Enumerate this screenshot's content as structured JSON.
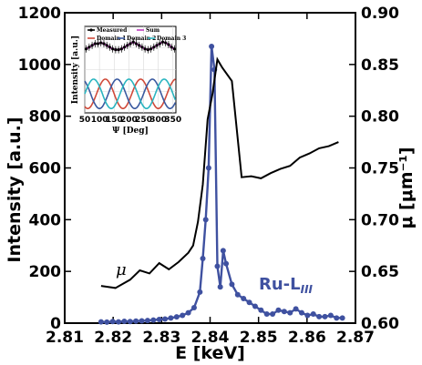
{
  "chart_data": [
    {
      "type": "line",
      "xlabel": "E [keV]",
      "ylabel_left": "Intensity [a.u.]",
      "ylabel_right": "μ [μm⁻¹]",
      "xlim": [
        2.81,
        2.87
      ],
      "ylim_left": [
        0,
        1200
      ],
      "ylim_right": [
        0.6,
        0.9
      ],
      "x_ticks": [
        "2.81",
        "2.82",
        "2.83",
        "2.84",
        "2.85",
        "2.86",
        "2.87"
      ],
      "y_ticks_left": [
        "0",
        "200",
        "400",
        "600",
        "800",
        "1000",
        "1200"
      ],
      "y_ticks_right": [
        "0.60",
        "0.65",
        "0.70",
        "0.75",
        "0.80",
        "0.85",
        "0.90"
      ],
      "annotations": {
        "mu": "μ",
        "ru_main": "Ru-L",
        "ru_sub": "III"
      },
      "series": [
        {
          "axis": "left",
          "color": "#3f51a0",
          "marker": "circle",
          "x": [
            2.8175,
            2.8187,
            2.8199,
            2.8211,
            2.8223,
            2.8235,
            2.8247,
            2.8259,
            2.8271,
            2.8283,
            2.8295,
            2.8307,
            2.8319,
            2.8331,
            2.8343,
            2.8355,
            2.8367,
            2.8379,
            2.8385,
            2.8391,
            2.8397,
            2.8403,
            2.8409,
            2.8415,
            2.8421,
            2.8427,
            2.8433,
            2.8445,
            2.8457,
            2.8469,
            2.8481,
            2.8493,
            2.8505,
            2.8517,
            2.8529,
            2.8541,
            2.8553,
            2.8565,
            2.8577,
            2.8589,
            2.8601,
            2.8613,
            2.8625,
            2.8637,
            2.8649,
            2.8661,
            2.8673
          ],
          "y": [
            5,
            4,
            6,
            5,
            7,
            6,
            8,
            9,
            10,
            12,
            14,
            16,
            20,
            24,
            30,
            40,
            60,
            120,
            250,
            400,
            600,
            1070,
            980,
            220,
            140,
            280,
            230,
            150,
            110,
            95,
            80,
            65,
            50,
            35,
            35,
            50,
            45,
            40,
            55,
            40,
            30,
            35,
            25,
            25,
            30,
            20,
            20
          ]
        },
        {
          "axis": "right",
          "color": "#000000",
          "x": [
            2.8175,
            2.8205,
            2.8235,
            2.8255,
            2.8275,
            2.8295,
            2.8315,
            2.8335,
            2.8355,
            2.8365,
            2.8375,
            2.8385,
            2.8395,
            2.8405,
            2.8415,
            2.8425,
            2.8445,
            2.8465,
            2.8485,
            2.8505,
            2.8525,
            2.8545,
            2.8565,
            2.8585,
            2.8605,
            2.8625,
            2.8645,
            2.8665
          ],
          "y": [
            0.636,
            0.634,
            0.642,
            0.651,
            0.648,
            0.658,
            0.652,
            0.659,
            0.668,
            0.675,
            0.698,
            0.734,
            0.797,
            0.822,
            0.855,
            0.847,
            0.834,
            0.741,
            0.742,
            0.74,
            0.745,
            0.749,
            0.752,
            0.76,
            0.764,
            0.769,
            0.771,
            0.775
          ]
        }
      ]
    },
    {
      "type": "line",
      "xlabel": "Ψ [Deg]",
      "ylabel": "Intensity [a.u.]",
      "xlim": [
        50,
        360
      ],
      "x_ticks": [
        "50",
        "100",
        "150",
        "200",
        "250",
        "300",
        "350"
      ],
      "legend": [
        "Measured",
        "Sum",
        "Domain 1",
        "Domain 2",
        "Domain 3"
      ],
      "legend_colors": [
        "#000000",
        "#c040c0",
        "#d04a3a",
        "#3a5aa0",
        "#2ab5c0"
      ],
      "grid": true,
      "series": [
        {
          "name": "Measured",
          "marker": "circle",
          "x": [
            55,
            65,
            75,
            85,
            95,
            105,
            115,
            125,
            135,
            145,
            155,
            165,
            175,
            185,
            195,
            205,
            215,
            225,
            235,
            245,
            255,
            265,
            275,
            285,
            295,
            305,
            315,
            325,
            335,
            345,
            355
          ],
          "y": [
            0.74,
            0.76,
            0.78,
            0.8,
            0.8,
            0.81,
            0.8,
            0.78,
            0.76,
            0.74,
            0.73,
            0.73,
            0.74,
            0.76,
            0.78,
            0.8,
            0.82,
            0.8,
            0.78,
            0.76,
            0.74,
            0.73,
            0.74,
            0.76,
            0.78,
            0.8,
            0.82,
            0.81,
            0.79,
            0.76,
            0.74
          ]
        }
      ]
    }
  ]
}
